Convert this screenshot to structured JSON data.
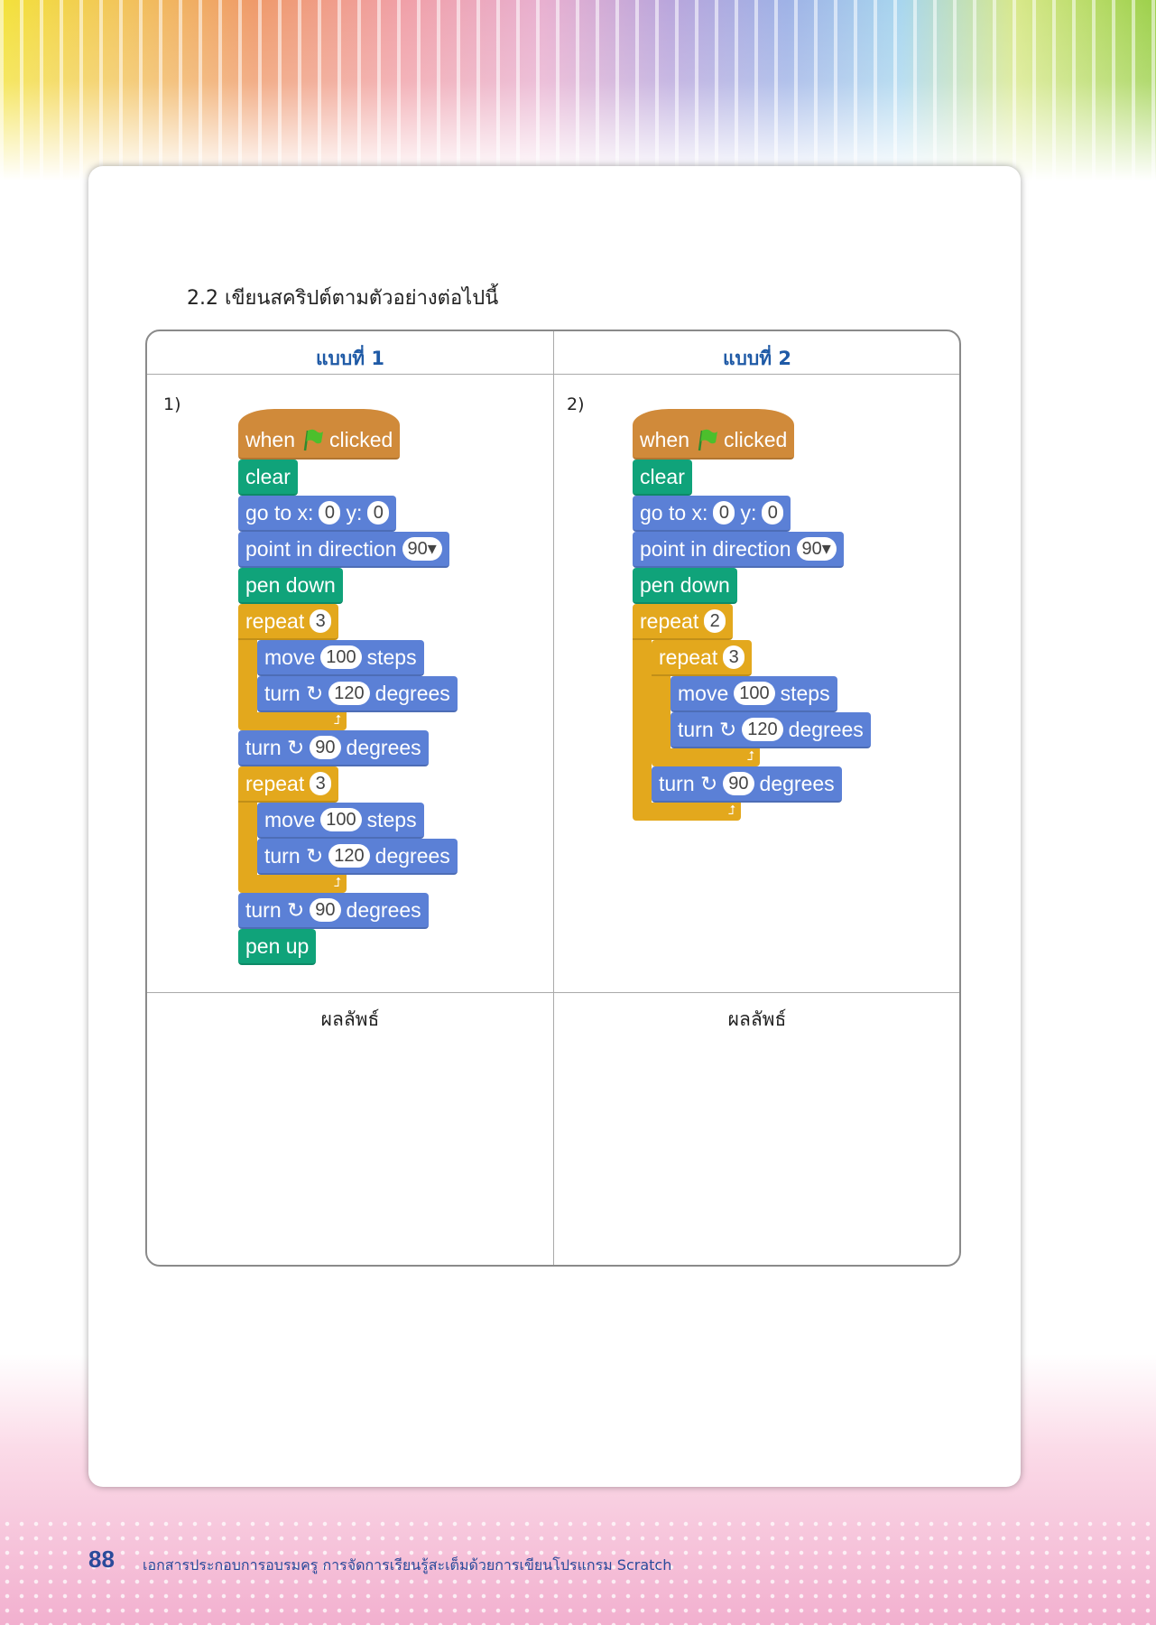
{
  "heading": "2.2  เขียนสคริปต์ตามตัวอย่างต่อไปนี้",
  "table": {
    "columns": [
      {
        "header": "แบบที่ 1",
        "number": "1)",
        "result_label": "ผลลัพธ์"
      },
      {
        "header": "แบบที่ 2",
        "number": "2)",
        "result_label": "ผลลัพธ์"
      }
    ]
  },
  "colors": {
    "events": "#d08a3a",
    "pen": "#10a37a",
    "motion": "#5b80d6",
    "control": "#e3a81d",
    "header_text": "#1f5aa6"
  },
  "scripts": [
    [
      {
        "cat": "events",
        "hat": true,
        "parts": [
          {
            "text": "when"
          },
          {
            "icon": "green-flag-icon"
          },
          {
            "text": "clicked"
          }
        ]
      },
      {
        "cat": "pen",
        "parts": [
          {
            "text": "clear"
          }
        ]
      },
      {
        "cat": "motion",
        "parts": [
          {
            "text": "go to x:"
          },
          {
            "input": "0"
          },
          {
            "text": "y:"
          },
          {
            "input": "0"
          }
        ]
      },
      {
        "cat": "motion",
        "parts": [
          {
            "text": "point in direction"
          },
          {
            "input": "90▾"
          }
        ]
      },
      {
        "cat": "pen",
        "parts": [
          {
            "text": "pen down"
          }
        ]
      },
      {
        "cat": "control",
        "parts": [
          {
            "text": "repeat"
          },
          {
            "input": "3"
          }
        ],
        "body": [
          {
            "cat": "motion",
            "parts": [
              {
                "text": "move"
              },
              {
                "input": "100"
              },
              {
                "text": "steps"
              }
            ]
          },
          {
            "cat": "motion",
            "parts": [
              {
                "text": "turn ↻"
              },
              {
                "input": "120"
              },
              {
                "text": "degrees"
              }
            ]
          }
        ]
      },
      {
        "cat": "motion",
        "parts": [
          {
            "text": "turn ↻"
          },
          {
            "input": "90"
          },
          {
            "text": "degrees"
          }
        ]
      },
      {
        "cat": "control",
        "parts": [
          {
            "text": "repeat"
          },
          {
            "input": "3"
          }
        ],
        "body": [
          {
            "cat": "motion",
            "parts": [
              {
                "text": "move"
              },
              {
                "input": "100"
              },
              {
                "text": "steps"
              }
            ]
          },
          {
            "cat": "motion",
            "parts": [
              {
                "text": "turn ↻"
              },
              {
                "input": "120"
              },
              {
                "text": "degrees"
              }
            ]
          }
        ]
      },
      {
        "cat": "motion",
        "parts": [
          {
            "text": "turn ↻"
          },
          {
            "input": "90"
          },
          {
            "text": "degrees"
          }
        ]
      },
      {
        "cat": "pen",
        "parts": [
          {
            "text": "pen up"
          }
        ]
      }
    ],
    [
      {
        "cat": "events",
        "hat": true,
        "parts": [
          {
            "text": "when"
          },
          {
            "icon": "green-flag-icon"
          },
          {
            "text": "clicked"
          }
        ]
      },
      {
        "cat": "pen",
        "parts": [
          {
            "text": "clear"
          }
        ]
      },
      {
        "cat": "motion",
        "parts": [
          {
            "text": "go to x:"
          },
          {
            "input": "0"
          },
          {
            "text": "y:"
          },
          {
            "input": "0"
          }
        ]
      },
      {
        "cat": "motion",
        "parts": [
          {
            "text": "point in direction"
          },
          {
            "input": "90▾"
          }
        ]
      },
      {
        "cat": "pen",
        "parts": [
          {
            "text": "pen down"
          }
        ]
      },
      {
        "cat": "control",
        "parts": [
          {
            "text": "repeat"
          },
          {
            "input": "2"
          }
        ],
        "body": [
          {
            "cat": "control",
            "parts": [
              {
                "text": "repeat"
              },
              {
                "input": "3"
              }
            ],
            "body": [
              {
                "cat": "motion",
                "parts": [
                  {
                    "text": "move"
                  },
                  {
                    "input": "100"
                  },
                  {
                    "text": "steps"
                  }
                ]
              },
              {
                "cat": "motion",
                "parts": [
                  {
                    "text": "turn ↻"
                  },
                  {
                    "input": "120"
                  },
                  {
                    "text": "degrees"
                  }
                ]
              }
            ]
          },
          {
            "cat": "motion",
            "parts": [
              {
                "text": "turn ↻"
              },
              {
                "input": "90"
              },
              {
                "text": "degrees"
              }
            ]
          }
        ]
      }
    ]
  ],
  "footer": {
    "page_number": "88",
    "text": "เอกสารประกอบการอบรมครู การจัดการเรียนรู้สะเต็มด้วยการเขียนโปรแกรม Scratch"
  }
}
